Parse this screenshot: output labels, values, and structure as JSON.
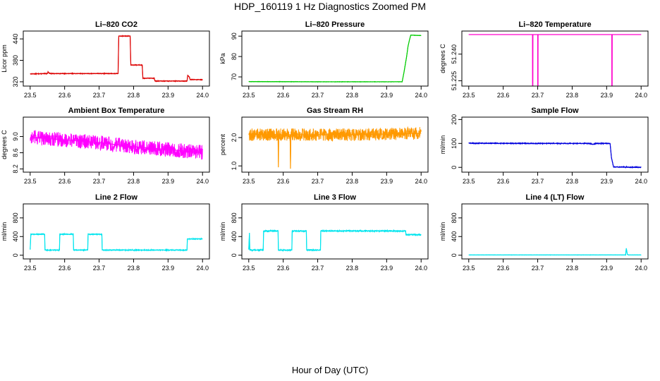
{
  "figure": {
    "title": "HDP_160119  1 Hz Diagnostics Zoomed PM",
    "xlabel": "Hour of Day (UTC)"
  },
  "chart_data": [
    {
      "type": "line",
      "title": "Li–820 CO2",
      "ylabel": "Licor ppm",
      "color": "#dd0000",
      "xlim": [
        23.48,
        24.02
      ],
      "ylim": [
        308,
        462
      ],
      "xticks": [
        23.5,
        23.6,
        23.7,
        23.8,
        23.9,
        24.0
      ],
      "yticks": [
        320,
        380,
        440
      ],
      "ytick_labels": [
        "320",
        "380",
        "440"
      ],
      "noise": 1,
      "series": [
        {
          "x": [
            23.5,
            23.55,
            23.552,
            23.555,
            23.56,
            23.755,
            23.757,
            23.79,
            23.792,
            23.825,
            23.827,
            23.86,
            23.862,
            23.955,
            23.957,
            23.962,
            23.964,
            24.0
          ],
          "y": [
            342,
            343,
            348,
            344,
            343,
            343,
            448,
            448,
            367,
            367,
            330,
            330,
            322,
            322,
            338,
            333,
            326,
            326
          ]
        }
      ]
    },
    {
      "type": "line",
      "title": "Li–820 Pressure",
      "ylabel": "kPa",
      "color": "#00cc00",
      "xlim": [
        23.48,
        24.02
      ],
      "ylim": [
        65.5,
        92.5
      ],
      "xticks": [
        23.5,
        23.6,
        23.7,
        23.8,
        23.9,
        24.0
      ],
      "yticks": [
        70,
        80,
        90
      ],
      "ytick_labels": [
        "70",
        "80",
        "90"
      ],
      "noise": 0.1,
      "series": [
        {
          "x": [
            23.5,
            23.7,
            23.9,
            23.945,
            23.95,
            23.958,
            23.962,
            23.966,
            23.97,
            24.0
          ],
          "y": [
            67.7,
            67.6,
            67.6,
            67.6,
            72,
            80,
            85,
            88,
            90.5,
            90.3
          ]
        }
      ]
    },
    {
      "type": "line",
      "title": "Li–820 Temperature",
      "ylabel": "degrees C",
      "color": "#ff00cc",
      "xlim": [
        23.48,
        24.02
      ],
      "ylim": [
        51.222,
        51.253
      ],
      "xticks": [
        23.5,
        23.6,
        23.7,
        23.8,
        23.9,
        24.0
      ],
      "yticks": [
        51.225,
        51.24
      ],
      "ytick_labels": [
        "51.225",
        "51.240"
      ],
      "noise": 0,
      "series": [
        {
          "x": [
            23.5,
            23.685,
            23.685,
            23.686,
            23.686,
            23.7,
            23.7,
            23.701,
            23.701,
            23.915,
            23.915,
            23.916,
            23.916,
            24.0
          ],
          "y": [
            51.251,
            51.251,
            51.222,
            51.222,
            51.251,
            51.251,
            51.222,
            51.222,
            51.251,
            51.251,
            51.222,
            51.222,
            51.251,
            51.251
          ]
        }
      ]
    },
    {
      "type": "line",
      "title": "Ambient Box Temperature",
      "ylabel": "degrees C",
      "color": "#ff00ff",
      "xlim": [
        23.48,
        24.02
      ],
      "ylim": [
        8.12,
        9.48
      ],
      "xticks": [
        23.5,
        23.6,
        23.7,
        23.8,
        23.9,
        24.0
      ],
      "yticks": [
        8.2,
        8.6,
        9.0
      ],
      "ytick_labels": [
        "8.2",
        "8.6",
        "9.0"
      ],
      "noise": 0.18,
      "series": [
        {
          "x": [
            23.5,
            23.6,
            23.7,
            23.8,
            23.9,
            24.0
          ],
          "y": [
            8.98,
            8.92,
            8.85,
            8.75,
            8.68,
            8.6
          ]
        }
      ]
    },
    {
      "type": "line",
      "title": "Gas Stream RH",
      "ylabel": "percent",
      "color": "#ff9900",
      "xlim": [
        23.48,
        24.02
      ],
      "ylim": [
        0.78,
        2.72
      ],
      "xticks": [
        23.5,
        23.6,
        23.7,
        23.8,
        23.9,
        24.0
      ],
      "yticks": [
        1.0,
        2.0
      ],
      "ytick_labels": [
        "1.0",
        "2.0"
      ],
      "noise": 0.22,
      "series": [
        {
          "x": [
            23.5,
            23.585,
            23.586,
            23.587,
            23.62,
            23.621,
            23.622,
            23.8,
            24.0
          ],
          "y": [
            2.1,
            2.1,
            0.95,
            2.1,
            2.1,
            0.9,
            2.1,
            2.1,
            2.15
          ]
        }
      ]
    },
    {
      "type": "line",
      "title": "Sample Flow",
      "ylabel": "ml/min",
      "color": "#0000dd",
      "xlim": [
        23.48,
        24.02
      ],
      "ylim": [
        -20,
        210
      ],
      "xticks": [
        23.5,
        23.6,
        23.7,
        23.8,
        23.9,
        24.0
      ],
      "yticks": [
        0,
        100,
        200
      ],
      "ytick_labels": [
        "0",
        "100",
        "200"
      ],
      "noise": 2,
      "series": [
        {
          "x": [
            23.5,
            23.7,
            23.85,
            23.86,
            23.87,
            23.91,
            23.914,
            23.92,
            24.0
          ],
          "y": [
            101,
            100,
            100,
            96,
            100,
            100,
            40,
            2,
            0
          ]
        }
      ]
    },
    {
      "type": "line",
      "title": "Line 2 Flow",
      "ylabel": "ml/min",
      "color": "#00e5ee",
      "xlim": [
        23.48,
        24.02
      ],
      "ylim": [
        -80,
        1100
      ],
      "xticks": [
        23.5,
        23.6,
        23.7,
        23.8,
        23.9,
        24.0
      ],
      "yticks": [
        0,
        400,
        800
      ],
      "ytick_labels": [
        "0",
        "400",
        "800"
      ],
      "noise": 10,
      "series": [
        {
          "x": [
            23.5,
            23.502,
            23.542,
            23.543,
            23.585,
            23.586,
            23.625,
            23.626,
            23.667,
            23.668,
            23.708,
            23.709,
            23.955,
            23.956,
            24.0
          ],
          "y": [
            120,
            450,
            450,
            110,
            110,
            450,
            450,
            110,
            110,
            450,
            450,
            110,
            110,
            350,
            350
          ]
        }
      ]
    },
    {
      "type": "line",
      "title": "Line 3 Flow",
      "ylabel": "ml/min",
      "color": "#00e5ee",
      "xlim": [
        23.48,
        24.02
      ],
      "ylim": [
        -80,
        1100
      ],
      "xticks": [
        23.5,
        23.6,
        23.7,
        23.8,
        23.9,
        24.0
      ],
      "yticks": [
        0,
        400,
        800
      ],
      "ytick_labels": [
        "0",
        "400",
        "800"
      ],
      "noise": 14,
      "series": [
        {
          "x": [
            23.5,
            23.502,
            23.503,
            23.542,
            23.543,
            23.585,
            23.586,
            23.625,
            23.626,
            23.667,
            23.668,
            23.708,
            23.709,
            23.955,
            23.956,
            24.0
          ],
          "y": [
            120,
            480,
            110,
            110,
            520,
            520,
            110,
            110,
            520,
            520,
            110,
            110,
            520,
            520,
            440,
            440
          ]
        }
      ]
    },
    {
      "type": "line",
      "title": "Line 4 (LT) Flow",
      "ylabel": "ml/min",
      "color": "#00e5ee",
      "xlim": [
        23.48,
        24.02
      ],
      "ylim": [
        -80,
        1100
      ],
      "xticks": [
        23.5,
        23.6,
        23.7,
        23.8,
        23.9,
        24.0
      ],
      "yticks": [
        0,
        400,
        800
      ],
      "ytick_labels": [
        "0",
        "400",
        "800"
      ],
      "noise": 3,
      "series": [
        {
          "x": [
            23.5,
            23.955,
            23.957,
            23.96,
            23.963,
            24.0
          ],
          "y": [
            5,
            5,
            150,
            20,
            5,
            5
          ]
        }
      ]
    }
  ]
}
